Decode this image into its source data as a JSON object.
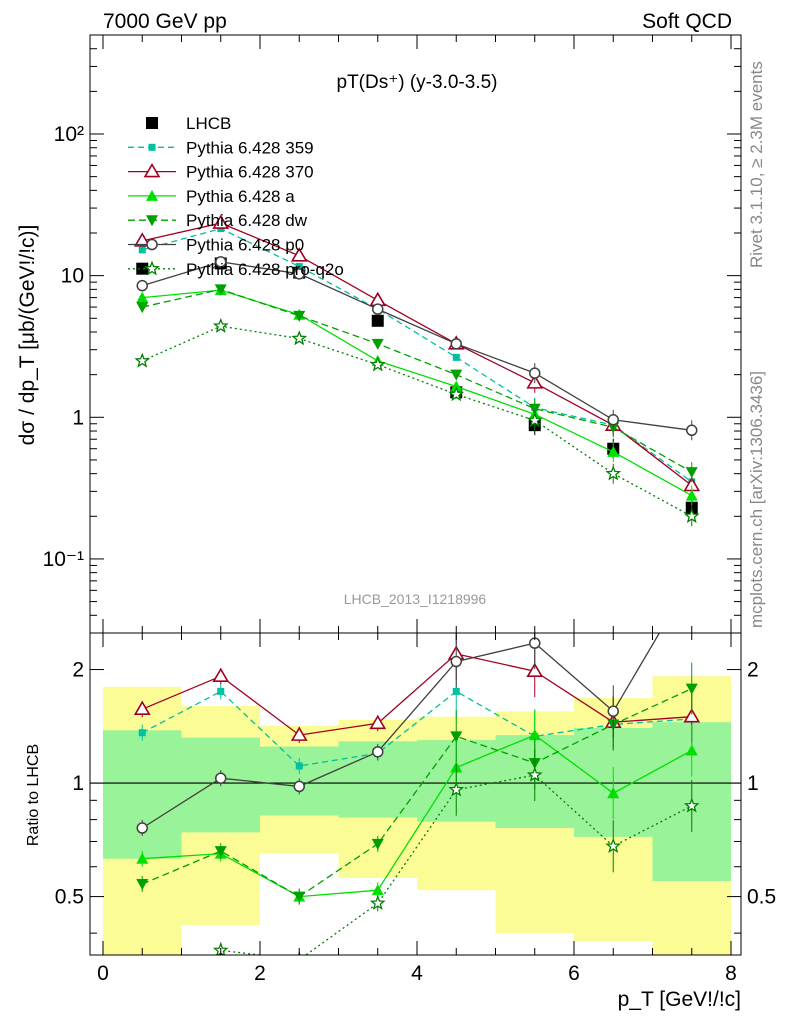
{
  "header": {
    "energy": "7000 GeV pp",
    "process": "Soft QCD"
  },
  "side_notes": {
    "rivet": "Rivet 3.1.10, ≥ 2.3M events",
    "source": "mcplots.cern.ch [arXiv:1306.3436]"
  },
  "chart_data": [
    {
      "type": "line",
      "panel": "main",
      "title": "pT(Ds⁺) (y-3.0-3.5)",
      "watermark": "LHCB_2013_I1218996",
      "ylabel": "dσ / dp_T [μb/(GeV!/!c)]",
      "yscale": "log",
      "xlim": [
        0,
        8
      ],
      "ylim": [
        0.03,
        500
      ],
      "x_ticks": [
        0,
        2,
        4,
        6,
        8
      ],
      "y_tick_labels": [
        "10⁻¹",
        "1",
        "10",
        "10²"
      ],
      "x": [
        0.5,
        1.5,
        2.5,
        3.5,
        4.5,
        5.5,
        6.5,
        7.5
      ],
      "series": [
        {
          "name": "LHCB",
          "color": "#000000",
          "marker": "square-filled",
          "dash": "none",
          "values": [
            11.2,
            12.2,
            10.5,
            4.8,
            1.5,
            0.88,
            0.6,
            0.23
          ]
        },
        {
          "name": "Pythia 6.428 359",
          "color": "#00c0a0",
          "marker": "square-filled-small",
          "dash": "6,4",
          "values": [
            15.2,
            21.5,
            11.6,
            5.8,
            2.65,
            1.17,
            0.88,
            0.35
          ]
        },
        {
          "name": "Pythia 6.428 370",
          "color": "#a00020",
          "marker": "triangle-open",
          "dash": "none",
          "values": [
            17.6,
            23.5,
            13.8,
            6.7,
            3.3,
            1.75,
            0.88,
            0.33
          ]
        },
        {
          "name": "Pythia 6.428 a",
          "color": "#00e000",
          "marker": "triangle-filled",
          "dash": "none",
          "values": [
            7.0,
            7.9,
            5.3,
            2.5,
            1.65,
            1.05,
            0.57,
            0.28
          ]
        },
        {
          "name": "Pythia 6.428 dw",
          "color": "#00a000",
          "marker": "triangle-down-filled",
          "dash": "7,4",
          "values": [
            6.0,
            8.0,
            5.2,
            3.3,
            2.0,
            1.15,
            0.85,
            0.41
          ]
        },
        {
          "name": "Pythia 6.428 p0",
          "color": "#404040",
          "marker": "circle-open",
          "dash": "none",
          "values": [
            8.5,
            12.5,
            10.3,
            5.8,
            3.3,
            2.05,
            0.96,
            0.81
          ]
        },
        {
          "name": "Pythia 6.428 pro-q2o",
          "color": "#008000",
          "marker": "star-open",
          "dash": "2,3",
          "values": [
            2.5,
            4.4,
            3.6,
            2.35,
            1.45,
            0.95,
            0.4,
            0.2
          ]
        }
      ]
    },
    {
      "type": "line",
      "panel": "ratio",
      "ylabel": "Ratio to LHCB",
      "xlabel": "p_T [GeV!/!c]",
      "yscale": "log",
      "xlim": [
        0,
        8
      ],
      "ylim": [
        0.35,
        2.5
      ],
      "x_ticks": [
        0,
        2,
        4,
        6,
        8
      ],
      "y_tick_labels": [
        "0.5",
        "1",
        "2"
      ],
      "bands": {
        "edges": [
          0,
          1,
          2,
          3,
          4,
          5,
          6,
          7,
          8
        ],
        "inner_low": [
          0.63,
          0.74,
          0.82,
          0.81,
          0.79,
          0.76,
          0.72,
          0.55
        ],
        "inner_high": [
          1.38,
          1.32,
          1.25,
          1.29,
          1.3,
          1.34,
          1.4,
          1.45
        ],
        "outer_low": [
          0.35,
          0.42,
          0.65,
          0.56,
          0.52,
          0.4,
          0.38,
          0.35
        ],
        "outer_high": [
          1.8,
          1.6,
          1.42,
          1.47,
          1.5,
          1.55,
          1.68,
          1.92
        ],
        "inner_color": "#99f399",
        "outer_color": "#fcfc96"
      },
      "x": [
        0.5,
        1.5,
        2.5,
        3.5,
        4.5,
        5.5,
        6.5,
        7.5
      ],
      "series": [
        {
          "name": "Pythia 6.428 359",
          "color": "#00c0a0",
          "marker": "square-filled-small",
          "dash": "6,4",
          "values": [
            1.36,
            1.75,
            1.11,
            1.2,
            1.75,
            1.33,
            1.43,
            1.48
          ]
        },
        {
          "name": "Pythia 6.428 370",
          "color": "#a00020",
          "marker": "triangle-open",
          "dash": "none",
          "values": [
            1.57,
            1.92,
            1.34,
            1.44,
            2.2,
            1.98,
            1.45,
            1.5
          ]
        },
        {
          "name": "Pythia 6.428 a",
          "color": "#00e000",
          "marker": "triangle-filled",
          "dash": "none",
          "values": [
            0.63,
            0.65,
            0.5,
            0.52,
            1.1,
            1.34,
            0.94,
            1.22
          ]
        },
        {
          "name": "Pythia 6.428 dw",
          "color": "#00a000",
          "marker": "triangle-down-filled",
          "dash": "7,4",
          "values": [
            0.54,
            0.66,
            0.5,
            0.69,
            1.33,
            1.13,
            1.43,
            1.78
          ]
        },
        {
          "name": "Pythia 6.428 p0",
          "color": "#404040",
          "marker": "circle-open",
          "dash": "none",
          "values": [
            0.76,
            1.03,
            0.98,
            1.21,
            2.1,
            2.35,
            1.55,
            3.5
          ]
        },
        {
          "name": "Pythia 6.428 pro-q2o",
          "color": "#008000",
          "marker": "star-open",
          "dash": "2,3",
          "values": [
            0.22,
            0.36,
            0.34,
            0.48,
            0.96,
            1.05,
            0.68,
            0.87
          ]
        }
      ]
    }
  ]
}
